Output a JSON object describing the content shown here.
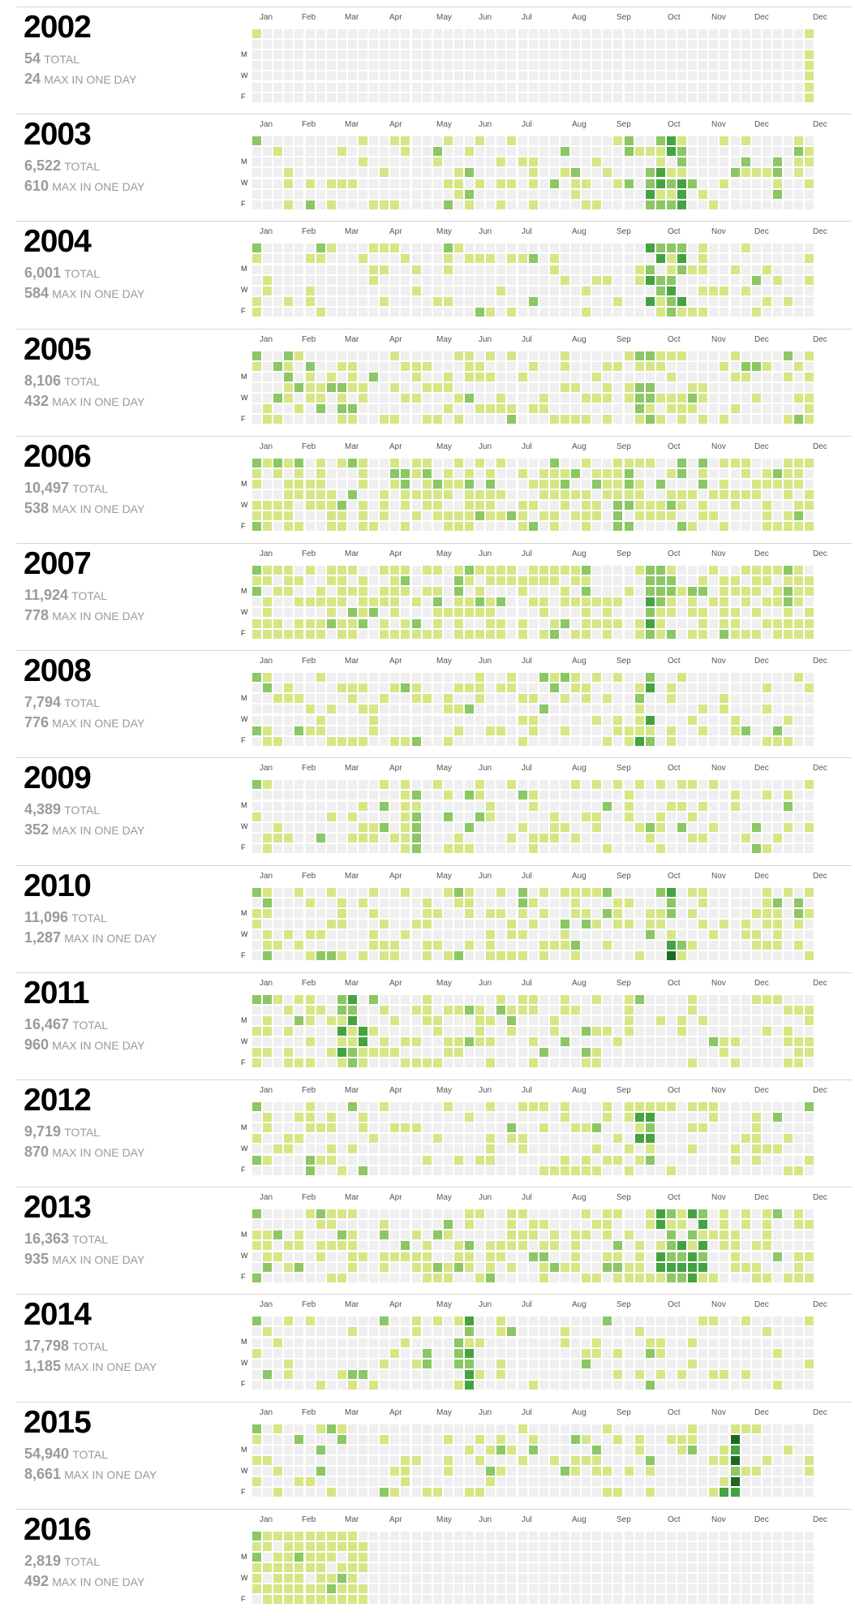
{
  "colors": {
    "levels": [
      "#efefef",
      "#d6e685",
      "#8cc665",
      "#44a340",
      "#1e6823",
      "#0b3d14"
    ],
    "year_text": "#000000",
    "stat_text": "#9a9a9a",
    "divider": "#d4d4d4"
  },
  "month_labels": [
    "Jan",
    "Feb",
    "Mar",
    "Apr",
    "May",
    "Jun",
    "Jul",
    "Aug",
    "Sep",
    "Oct",
    "Nov",
    "Dec",
    "Dec"
  ],
  "day_labels": [
    "M",
    "W",
    "F"
  ],
  "stat_labels": {
    "total": "TOTAL",
    "max": "MAX IN ONE DAY"
  },
  "years": [
    {
      "year": "2002",
      "total": "54",
      "max": "24",
      "seed": 2002,
      "activity": 0.012,
      "hot_start": 52,
      "hot_end": 52,
      "hot_level": 1
    },
    {
      "year": "2003",
      "total": "6,522",
      "max": "610",
      "seed": 2003,
      "activity": 0.25,
      "hot_start": 37,
      "hot_end": 40,
      "hot_level": 3
    },
    {
      "year": "2004",
      "total": "6,001",
      "max": "584",
      "seed": 2004,
      "activity": 0.22,
      "hot_start": 37,
      "hot_end": 40,
      "hot_level": 3
    },
    {
      "year": "2005",
      "total": "8,106",
      "max": "432",
      "seed": 2005,
      "activity": 0.4,
      "hot_start": 36,
      "hot_end": 37,
      "hot_level": 2
    },
    {
      "year": "2006",
      "total": "10,497",
      "max": "538",
      "seed": 2006,
      "activity": 0.6,
      "hot_start": 34,
      "hot_end": 35,
      "hot_level": 2
    },
    {
      "year": "2007",
      "total": "11,924",
      "max": "778",
      "seed": 2007,
      "activity": 0.62,
      "hot_start": 37,
      "hot_end": 38,
      "hot_level": 3
    },
    {
      "year": "2008",
      "total": "7,794",
      "max": "776",
      "seed": 2008,
      "activity": 0.28,
      "hot_start": 36,
      "hot_end": 37,
      "hot_level": 3
    },
    {
      "year": "2009",
      "total": "4,389",
      "max": "352",
      "seed": 2009,
      "activity": 0.24,
      "hot_start": 14,
      "hot_end": 15,
      "hot_level": 2
    },
    {
      "year": "2010",
      "total": "11,096",
      "max": "1,287",
      "seed": 2010,
      "activity": 0.33,
      "hot_start": 39,
      "hot_end": 39,
      "hot_level": 4
    },
    {
      "year": "2011",
      "total": "16,467",
      "max": "960",
      "seed": 2011,
      "activity": 0.28,
      "hot_start": 8,
      "hot_end": 10,
      "hot_level": 3
    },
    {
      "year": "2012",
      "total": "9,719",
      "max": "870",
      "seed": 2012,
      "activity": 0.28,
      "hot_start": 36,
      "hot_end": 37,
      "hot_level": 3
    },
    {
      "year": "2013",
      "total": "16,363",
      "max": "935",
      "seed": 2013,
      "activity": 0.45,
      "hot_start": 38,
      "hot_end": 42,
      "hot_level": 3
    },
    {
      "year": "2014",
      "total": "17,798",
      "max": "1,185",
      "seed": 2014,
      "activity": 0.22,
      "hot_start": 19,
      "hot_end": 20,
      "hot_level": 3
    },
    {
      "year": "2015",
      "total": "54,940",
      "max": "8,661",
      "seed": 2015,
      "activity": 0.26,
      "hot_start": 44,
      "hot_end": 45,
      "hot_level": 5
    },
    {
      "year": "2016",
      "total": "2,819",
      "max": "492",
      "seed": 2016,
      "activity": 0.4,
      "hot_start": 0,
      "hot_end": 10,
      "hot_level": 1
    }
  ]
}
